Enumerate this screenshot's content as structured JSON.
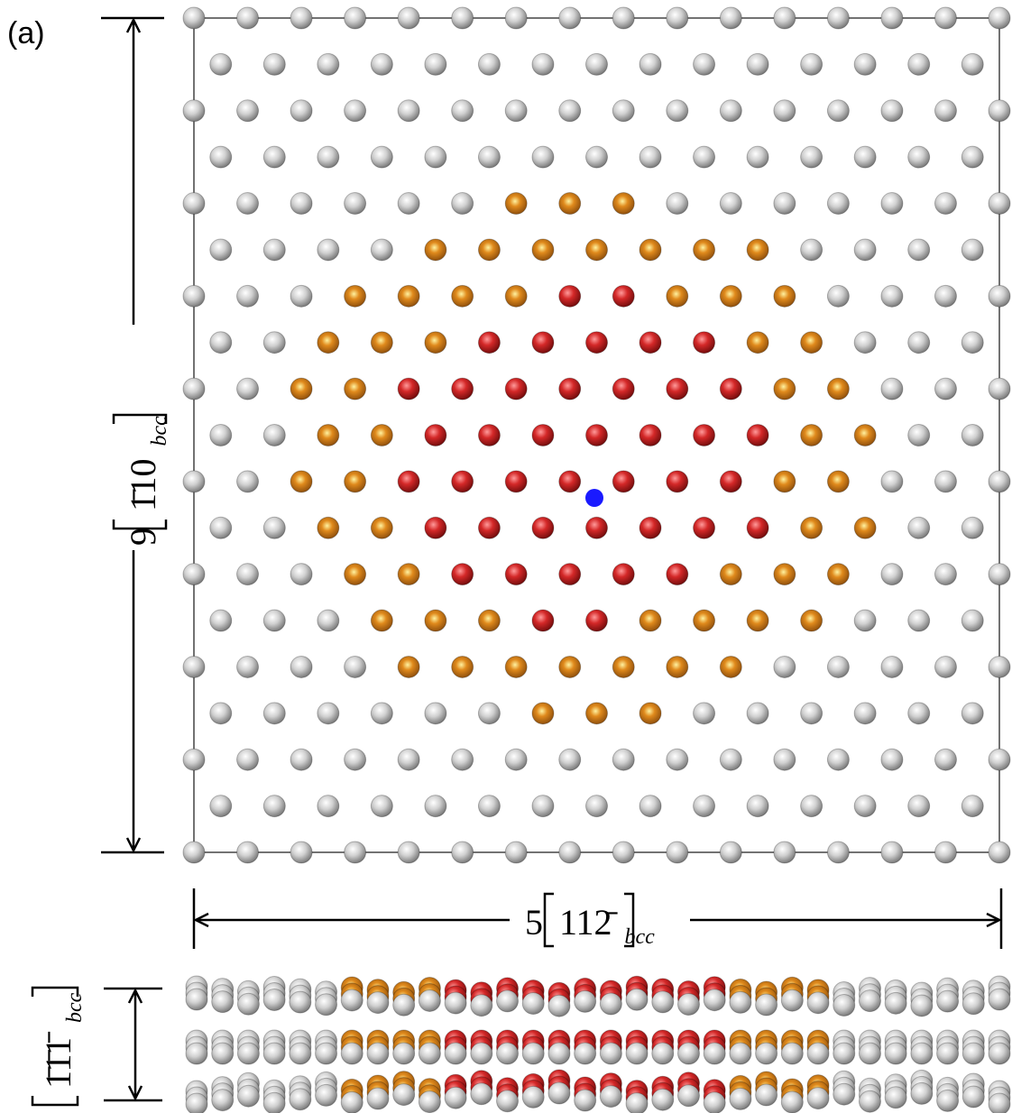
{
  "panel_label": "(a)",
  "dimensions": {
    "vertical": {
      "coefficient": "9",
      "index": "1̄10",
      "subscript": "bcc"
    },
    "horizontal": {
      "coefficient": "5",
      "index": "112̄",
      "subscript": "bcc"
    },
    "depth": {
      "index": "1̄1̄1̄",
      "subscript": "bcc"
    }
  }
}
